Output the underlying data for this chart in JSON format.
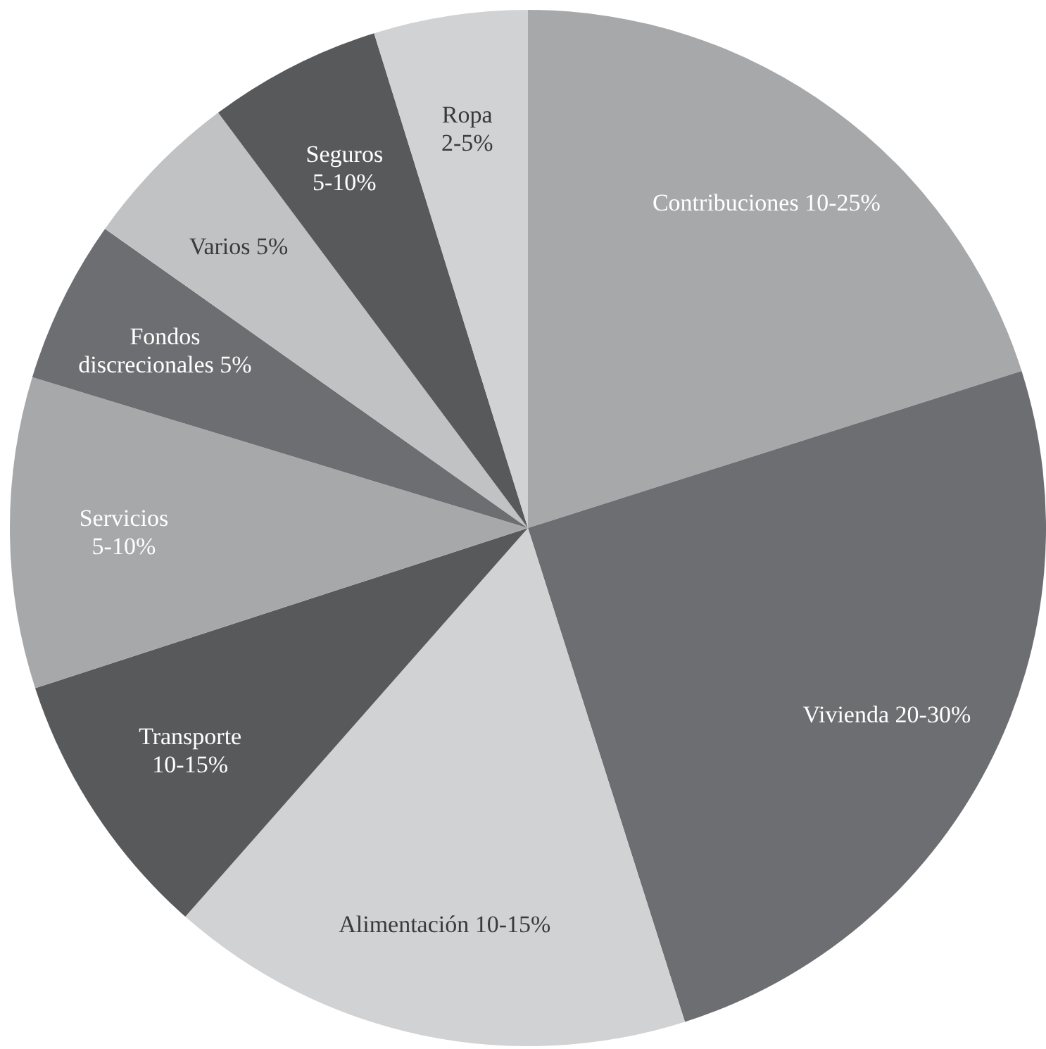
{
  "chart_data": {
    "type": "pie",
    "categories": [
      "Contribuciones 10-25%",
      "Vivienda 20-30%",
      "Alimentación 10-15%",
      "Transporte\n10-15%",
      "Servicios\n5-10%",
      "Fondos\ndiscrecionales 5%",
      "Varios 5%",
      "Seguros\n5-10%",
      "Ropa\n2-5%"
    ],
    "values": [
      20.1,
      25,
      16.4,
      8.5,
      9.7,
      5.1,
      5,
      5.4,
      4.8
    ],
    "colors": [
      "#a7a8aa",
      "#6d6e71",
      "#d1d2d4",
      "#58595b",
      "#a7a8aa",
      "#6d6e71",
      "#c1c2c4",
      "#58595b",
      "#d1d2d4"
    ]
  }
}
